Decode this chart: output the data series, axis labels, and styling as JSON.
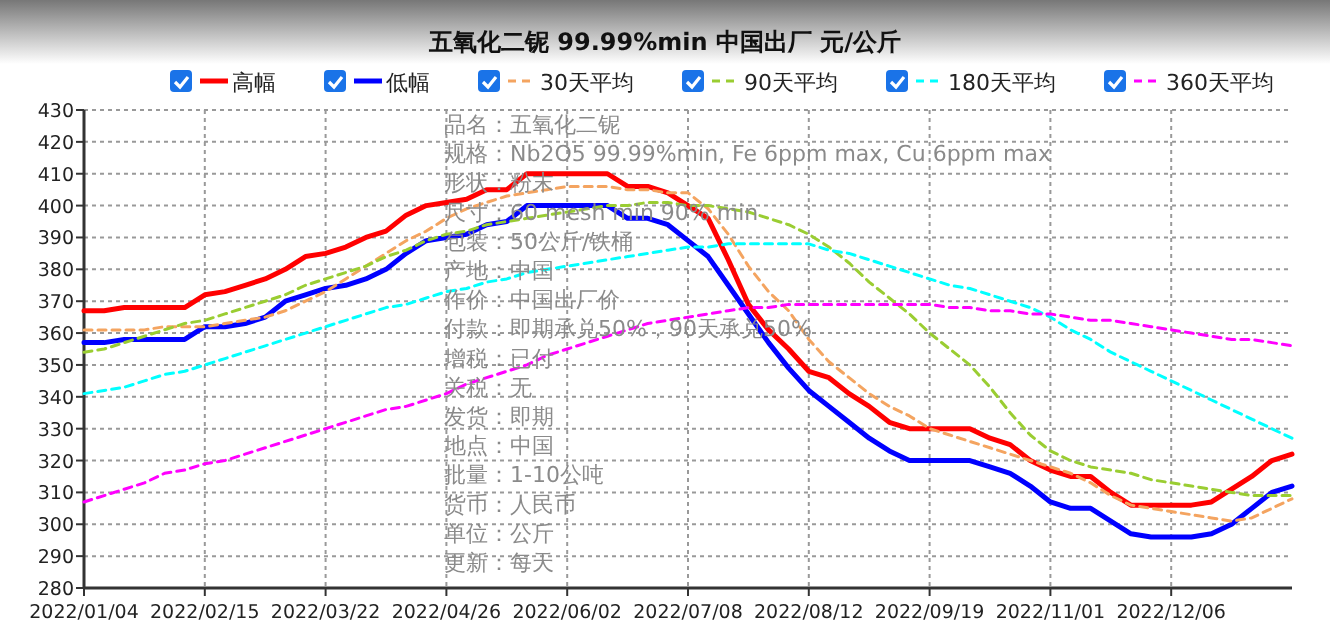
{
  "chart_data": {
    "type": "line",
    "title": "五氧化二铌 99.99%min 中国出厂 元/公斤",
    "categories": [
      "2022/01/04",
      null,
      null,
      null,
      null,
      null,
      "2022/02/15",
      null,
      null,
      null,
      null,
      null,
      "2022/03/22",
      null,
      null,
      null,
      null,
      null,
      "2022/04/26",
      null,
      null,
      null,
      null,
      null,
      "2022/06/02",
      null,
      null,
      null,
      null,
      null,
      "2022/07/08",
      null,
      null,
      null,
      null,
      null,
      "2022/08/12",
      null,
      null,
      null,
      null,
      null,
      "2022/09/19",
      null,
      null,
      null,
      null,
      null,
      "2022/11/01",
      null,
      null,
      null,
      null,
      null,
      "2022/12/06",
      null,
      null,
      null,
      null,
      null,
      null
    ],
    "series": [
      {
        "name": "高幅",
        "color": "#ff0000",
        "line_style": "solid",
        "values": [
          367,
          367,
          368,
          368,
          368,
          368,
          372,
          373,
          375,
          377,
          380,
          384,
          385,
          387,
          390,
          392,
          397,
          400,
          401,
          402,
          405,
          405,
          410,
          410,
          410,
          410,
          410,
          406,
          406,
          404,
          400,
          396,
          383,
          369,
          361,
          355,
          348,
          346,
          341,
          337,
          332,
          330,
          330,
          330,
          330,
          327,
          325,
          320,
          317,
          315,
          315,
          310,
          306,
          306,
          306,
          306,
          307,
          311,
          315,
          320,
          322
        ]
      },
      {
        "name": "低幅",
        "color": "#0000ff",
        "line_style": "solid",
        "values": [
          357,
          357,
          358,
          358,
          358,
          358,
          362,
          362,
          363,
          365,
          370,
          372,
          374,
          375,
          377,
          380,
          385,
          389,
          390,
          391,
          394,
          395,
          400,
          400,
          400,
          400,
          400,
          396,
          396,
          394,
          389,
          384,
          375,
          366,
          357,
          349,
          342,
          337,
          332,
          327,
          323,
          320,
          320,
          320,
          320,
          318,
          316,
          312,
          307,
          305,
          305,
          301,
          297,
          296,
          296,
          296,
          297,
          300,
          305,
          310,
          312
        ]
      },
      {
        "name": "30天平均",
        "color": "#f4a460",
        "line_style": "dashed",
        "values": [
          361,
          361,
          361,
          361,
          362,
          362,
          362,
          363,
          364,
          365,
          367,
          370,
          373,
          377,
          381,
          385,
          389,
          392,
          396,
          399,
          401,
          403,
          404,
          405,
          406,
          406,
          406,
          405,
          405,
          404,
          404,
          399,
          391,
          381,
          373,
          367,
          358,
          351,
          346,
          341,
          337,
          334,
          330,
          328,
          326,
          324,
          322,
          320,
          318,
          316,
          313,
          309,
          306,
          305,
          304,
          303,
          302,
          301,
          302,
          305,
          308
        ]
      },
      {
        "name": "90天平均",
        "color": "#9acd32",
        "line_style": "dashed",
        "values": [
          354,
          355,
          357,
          359,
          361,
          363,
          364,
          366,
          368,
          370,
          372,
          375,
          377,
          379,
          381,
          384,
          386,
          389,
          391,
          392,
          394,
          395,
          396,
          397,
          398,
          399,
          400,
          400,
          401,
          401,
          400,
          400,
          399,
          398,
          396,
          394,
          391,
          387,
          382,
          376,
          371,
          366,
          360,
          355,
          350,
          343,
          335,
          328,
          323,
          320,
          318,
          317,
          316,
          314,
          313,
          312,
          311,
          310,
          309,
          309,
          309
        ]
      },
      {
        "name": "180天平均",
        "color": "#00ffff",
        "line_style": "dashed",
        "values": [
          341,
          342,
          343,
          345,
          347,
          348,
          350,
          352,
          354,
          356,
          358,
          360,
          362,
          364,
          366,
          368,
          369,
          371,
          373,
          374,
          376,
          377,
          379,
          380,
          381,
          382,
          383,
          384,
          385,
          386,
          387,
          387,
          388,
          388,
          388,
          388,
          388,
          386,
          385,
          383,
          381,
          379,
          377,
          375,
          374,
          372,
          370,
          368,
          365,
          361,
          358,
          354,
          351,
          348,
          345,
          342,
          339,
          336,
          333,
          330,
          327
        ]
      },
      {
        "name": "360天平均",
        "color": "#ff00ff",
        "line_style": "dashed",
        "values": [
          307,
          309,
          311,
          313,
          316,
          317,
          319,
          320,
          322,
          324,
          326,
          328,
          330,
          332,
          334,
          336,
          337,
          339,
          341,
          344,
          346,
          348,
          350,
          353,
          355,
          357,
          359,
          361,
          363,
          364,
          365,
          366,
          367,
          368,
          368,
          369,
          369,
          369,
          369,
          369,
          369,
          369,
          369,
          368,
          368,
          367,
          367,
          366,
          366,
          365,
          364,
          364,
          363,
          362,
          361,
          360,
          359,
          358,
          358,
          357,
          356
        ]
      }
    ],
    "ylim": [
      280,
      430
    ],
    "yticks": [
      280,
      290,
      300,
      310,
      320,
      330,
      340,
      350,
      360,
      370,
      380,
      390,
      400,
      410,
      420,
      430
    ],
    "grid": true,
    "legend": "top",
    "marker": "none",
    "annotations": [
      "品名：五氧化二铌",
      "规格：Nb2O5 99.99%min, Fe 6ppm max, Cu 6ppm max",
      "形状：粉末",
      "尺寸：60 mesh min 90% min",
      "包装：50公斤/铁桶",
      "产地：中国",
      "作价：中国出厂价",
      "付款：即期承兑50%，90天承兑50%",
      "增税：已付",
      "关税：无",
      "发货：即期",
      "地点：中国",
      "批量：1-10公吨",
      "货币：人民币",
      "单位：公斤",
      "更新：每天"
    ]
  }
}
